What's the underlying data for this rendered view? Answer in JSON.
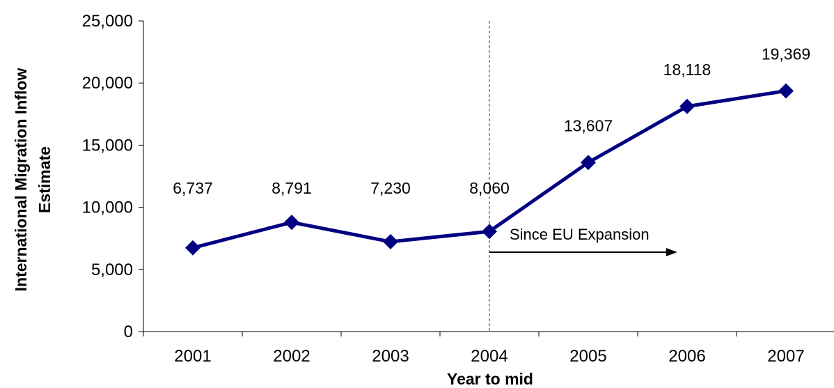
{
  "chart_data": {
    "type": "line",
    "categories": [
      "2001",
      "2002",
      "2003",
      "2004",
      "2005",
      "2006",
      "2007"
    ],
    "series": [
      {
        "values": [
          6737,
          8791,
          7230,
          8060,
          13607,
          18118,
          19369
        ],
        "labels": [
          "6,737",
          "8,791",
          "7,230",
          "8,060",
          "13,607",
          "18,118",
          "19,369"
        ],
        "color": "#000080",
        "marker": "diamond"
      }
    ],
    "ylim": [
      0,
      25000
    ],
    "yticks": [
      0,
      5000,
      10000,
      15000,
      20000,
      25000
    ],
    "ytick_labels": [
      "0",
      "5,000",
      "10,000",
      "15,000",
      "20,000",
      "25,000"
    ],
    "xlabel": "Year to mid",
    "ylabel_lines": [
      "International Migration Inflow",
      "Estimate"
    ],
    "grid": false,
    "legend": "none",
    "annotation": {
      "text": "Since EU Expansion",
      "marker_category": "2004",
      "arrow_end_value": 2005.9
    }
  }
}
